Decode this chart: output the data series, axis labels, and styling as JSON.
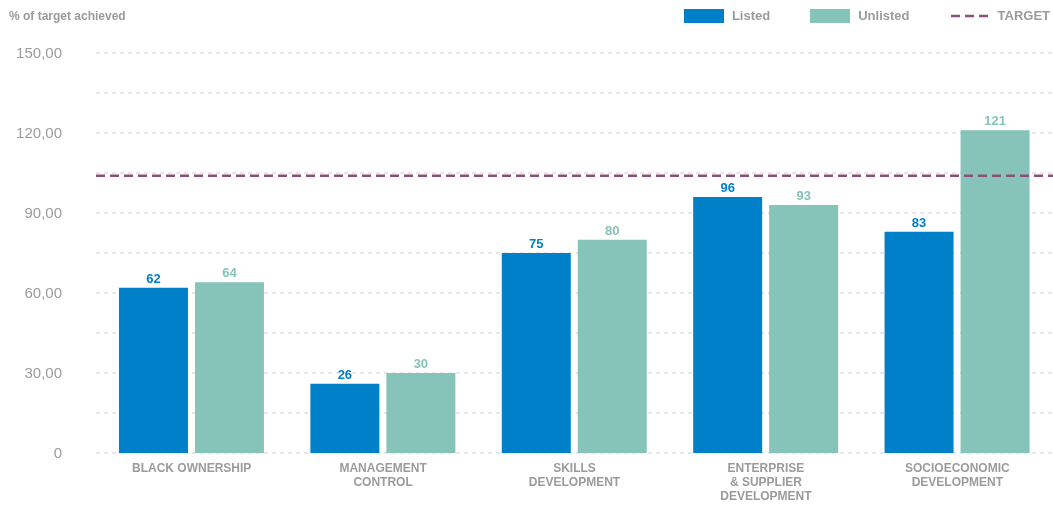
{
  "chart_data": {
    "type": "bar",
    "ylabel": "% of target achieved",
    "categories": [
      "BLACK OWNERSHIP",
      "MANAGEMENT CONTROL",
      "SKILLS DEVELOPMENT",
      "ENTERPRISE & SUPPLIER DEVELOPMENT",
      "SOCIOECONOMIC DEVELOPMENT"
    ],
    "series": [
      {
        "name": "Listed",
        "color": "#0080c8",
        "values": [
          62,
          26,
          75,
          96,
          83
        ]
      },
      {
        "name": "Unlisted",
        "color": "#86c3b8",
        "values": [
          64,
          30,
          80,
          93,
          121
        ]
      }
    ],
    "ylim": [
      0,
      150
    ],
    "yticks": [
      0,
      {
        "value": 15,
        "label": null
      },
      {
        "value": 30,
        "label": "30,00"
      },
      {
        "value": 45,
        "label": null
      },
      {
        "value": 60,
        "label": "60,00"
      },
      {
        "value": 75,
        "label": null
      },
      {
        "value": 90,
        "label": "90,00"
      },
      {
        "value": 105,
        "label": null
      },
      {
        "value": 120,
        "label": "120,00"
      },
      {
        "value": 135,
        "label": null
      },
      {
        "value": 150,
        "label": "150,00"
      }
    ],
    "grid": "y",
    "legend": "top right",
    "data_labels": true,
    "ref_lines": [
      {
        "axis": "y",
        "value": 104,
        "label": "TARGET",
        "color": "#8c4f78",
        "line_style": "dashed"
      }
    ]
  }
}
